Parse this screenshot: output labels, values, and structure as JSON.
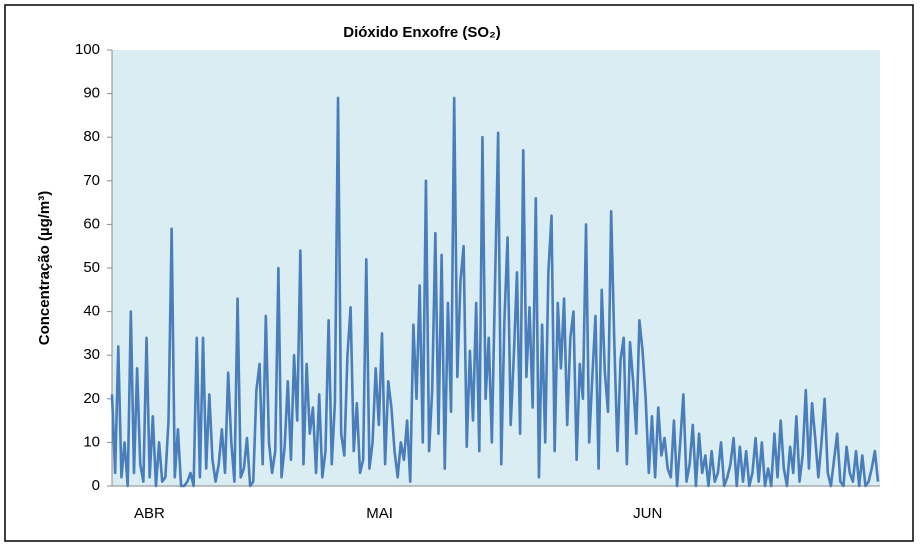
{
  "chart_data": {
    "type": "line",
    "title": "Dióxido Enxofre (SO₂)",
    "y_label": "Concentração (µg/m³)",
    "categories": [
      null,
      null,
      null,
      null,
      null,
      null,
      null,
      "ABR",
      null,
      null,
      null,
      null,
      null,
      null,
      null,
      null,
      null,
      null,
      null,
      null,
      null,
      null,
      null,
      null,
      null,
      null,
      null,
      null,
      null,
      null,
      null,
      null,
      null,
      null,
      null,
      null,
      null,
      null,
      null,
      null,
      null,
      null,
      null,
      null,
      null,
      null,
      null,
      null,
      null,
      null,
      null,
      null,
      null,
      null,
      null,
      null,
      null,
      null,
      null,
      null,
      null,
      null,
      null,
      null,
      null,
      null,
      null,
      null,
      null,
      null,
      null,
      null,
      null,
      null,
      null,
      null,
      null,
      null,
      null,
      null,
      null,
      "MAI",
      null,
      null,
      null,
      null,
      null,
      null,
      null,
      null,
      null,
      null,
      null,
      null,
      null,
      null,
      null,
      null,
      null,
      null,
      null,
      null,
      null,
      null,
      null,
      null,
      null,
      null,
      null,
      null,
      null,
      null,
      null,
      null,
      null,
      null,
      null,
      null,
      null,
      null,
      null,
      null,
      null,
      null,
      null,
      null,
      null,
      null,
      null,
      null,
      null,
      null,
      null,
      null,
      null,
      null,
      null,
      null,
      null,
      null,
      null,
      null,
      null,
      null,
      null,
      null,
      null,
      null,
      null,
      null,
      null,
      null,
      null,
      null,
      null,
      null,
      null,
      null,
      null,
      null,
      null,
      null,
      null,
      null,
      null,
      null,
      "JUN",
      null,
      null,
      null,
      null,
      null,
      null,
      null,
      null,
      null,
      null,
      null,
      null,
      null,
      null,
      null,
      null,
      null,
      null,
      null,
      null,
      null,
      null,
      null,
      null,
      null,
      null,
      null,
      null,
      null,
      null,
      null,
      null,
      null,
      null,
      null,
      null,
      null,
      null,
      null,
      null,
      null,
      null,
      null,
      null,
      null,
      null,
      null,
      null,
      null,
      null,
      null,
      null,
      null,
      null,
      null,
      null,
      null,
      null,
      null,
      null,
      null,
      null,
      null,
      null,
      null,
      null,
      null,
      null,
      null,
      null,
      null,
      null,
      null,
      null,
      null,
      null,
      null,
      null
    ],
    "values": [
      21,
      3,
      32,
      2,
      10,
      0,
      40,
      3,
      27,
      5,
      1,
      34,
      2,
      16,
      0,
      10,
      1,
      2,
      15,
      59,
      2,
      13,
      0,
      0,
      1,
      3,
      0,
      34,
      2,
      34,
      4,
      21,
      6,
      1,
      5,
      13,
      3,
      26,
      10,
      1,
      43,
      2,
      4,
      11,
      0,
      1,
      22,
      28,
      5,
      39,
      10,
      3,
      8,
      50,
      2,
      9,
      24,
      6,
      30,
      15,
      54,
      5,
      28,
      12,
      18,
      3,
      21,
      2,
      8,
      38,
      5,
      19,
      89,
      12,
      7,
      30,
      41,
      8,
      19,
      3,
      6,
      52,
      4,
      10,
      27,
      14,
      35,
      5,
      24,
      18,
      8,
      2,
      10,
      6,
      15,
      1,
      37,
      20,
      46,
      10,
      70,
      8,
      22,
      58,
      12,
      53,
      4,
      42,
      17,
      89,
      25,
      47,
      55,
      9,
      31,
      15,
      42,
      8,
      80,
      20,
      34,
      10,
      46,
      81,
      5,
      38,
      57,
      14,
      30,
      49,
      12,
      77,
      25,
      41,
      18,
      66,
      2,
      37,
      10,
      49,
      62,
      8,
      42,
      27,
      43,
      14,
      34,
      40,
      6,
      28,
      20,
      60,
      10,
      25,
      39,
      4,
      45,
      26,
      17,
      63,
      33,
      8,
      29,
      34,
      5,
      33,
      24,
      12,
      38,
      31,
      20,
      3,
      16,
      2,
      18,
      7,
      11,
      4,
      2,
      15,
      0,
      10,
      21,
      1,
      5,
      14,
      0,
      12,
      3,
      7,
      0,
      8,
      1,
      3,
      10,
      0,
      2,
      5,
      11,
      0,
      9,
      1,
      8,
      0,
      3,
      11,
      1,
      10,
      0,
      4,
      0,
      12,
      2,
      15,
      4,
      0,
      9,
      3,
      16,
      1,
      7,
      22,
      4,
      19,
      11,
      2,
      10,
      20,
      3,
      0,
      6,
      12,
      1,
      0,
      9,
      3,
      1,
      8,
      0,
      7,
      0,
      1,
      4,
      8,
      1
    ],
    "color": "#4a7ebb",
    "plot_background": "#daedf3",
    "ylim": [
      0,
      100
    ],
    "yticks": [
      0,
      10,
      20,
      30,
      40,
      50,
      60,
      70,
      80,
      90,
      100
    ]
  }
}
